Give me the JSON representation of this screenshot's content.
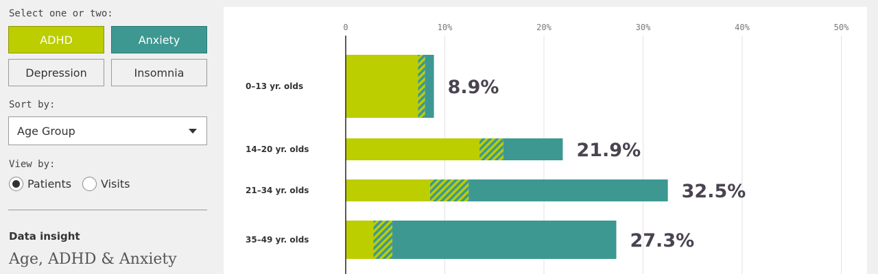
{
  "sidebar": {
    "select_label": "Select one or two:",
    "conditions": [
      {
        "label": "ADHD",
        "selected": true
      },
      {
        "label": "Anxiety",
        "selected": true
      },
      {
        "label": "Depression",
        "selected": false
      },
      {
        "label": "Insomnia",
        "selected": false
      }
    ],
    "sort_label": "Sort by:",
    "sort_value": "Age Group",
    "view_label": "View by:",
    "view_options": [
      {
        "label": "Patients",
        "checked": true
      },
      {
        "label": "Visits",
        "checked": false
      }
    ],
    "insight_label": "Data insight",
    "insight_title": "Age, ADHD & Anxiety"
  },
  "colors": {
    "adhd": "#bccd00",
    "anxiety": "#3d9891",
    "value_text": "#4a4350"
  },
  "chart_data": {
    "type": "bar",
    "orientation": "horizontal",
    "stacked": true,
    "x_ticks": [
      "0",
      "10%",
      "20%",
      "30%",
      "40%",
      "50%"
    ],
    "xlim": [
      0,
      50
    ],
    "grid": true,
    "categories": [
      "0–13 yr. olds",
      "14–20 yr. olds",
      "21–34 yr. olds",
      "35–49 yr. olds"
    ],
    "series": [
      {
        "name": "ADHD",
        "values": [
          7.3,
          13.5,
          8.5,
          2.8
        ]
      },
      {
        "name": "ADHD & Anxiety",
        "values": [
          0.7,
          2.4,
          3.9,
          1.9
        ]
      },
      {
        "name": "Anxiety",
        "values": [
          0.9,
          6.0,
          20.1,
          22.6
        ]
      }
    ],
    "totals": [
      "8.9%",
      "21.9%",
      "32.5%",
      "27.3%"
    ]
  }
}
